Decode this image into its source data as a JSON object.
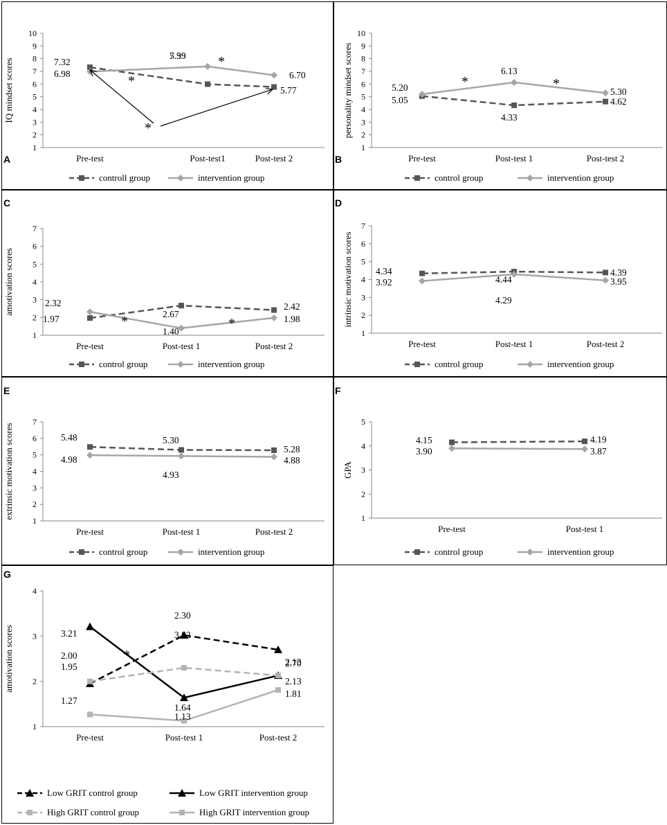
{
  "chart_data": [
    {
      "panel": "A",
      "type": "line",
      "ylabel": "IQ mindset scores",
      "ylim": [
        1,
        10
      ],
      "yticks": [
        1,
        2,
        3,
        4,
        5,
        6,
        7,
        8,
        9,
        10
      ],
      "categories": [
        "Pre-test",
        "Post-test1",
        "Post-test 2"
      ],
      "series": [
        {
          "name": "controll group",
          "values": [
            7.32,
            5.99,
            5.77
          ],
          "labels": [
            "7.32",
            "5.99",
            "5.77"
          ],
          "style": "dashed",
          "color": "#555555",
          "marker": "square"
        },
        {
          "name": "intervention group",
          "values": [
            6.98,
            7.39,
            6.7
          ],
          "labels": [
            "6.98",
            "7.39",
            "6.70"
          ],
          "style": "solid",
          "color": "#a6a6a6",
          "marker": "diamond"
        }
      ],
      "annotations": [
        "*",
        "*",
        "*"
      ]
    },
    {
      "panel": "B",
      "type": "line",
      "ylabel": "personality mindset scores",
      "ylim": [
        1,
        10
      ],
      "yticks": [
        1,
        2,
        3,
        4,
        5,
        6,
        7,
        8,
        9,
        10
      ],
      "categories": [
        "Pre-test",
        "Post-test 1",
        "Post-test 2"
      ],
      "series": [
        {
          "name": "control group",
          "values": [
            5.05,
            4.33,
            4.62
          ],
          "labels": [
            "5.05",
            "4.33",
            "4.62"
          ],
          "style": "dashed",
          "color": "#555555",
          "marker": "square"
        },
        {
          "name": "intervention group",
          "values": [
            5.2,
            6.13,
            5.3
          ],
          "labels": [
            "5.20",
            "6.13",
            "5.30"
          ],
          "style": "solid",
          "color": "#a6a6a6",
          "marker": "diamond"
        }
      ],
      "annotations": [
        "*",
        "*"
      ]
    },
    {
      "panel": "C",
      "type": "line",
      "ylabel": "amotivation scores",
      "ylim": [
        1,
        7
      ],
      "yticks": [
        1,
        2,
        3,
        4,
        5,
        6,
        7
      ],
      "categories": [
        "Pre-test",
        "Post-test 1",
        "Post-test 2"
      ],
      "series": [
        {
          "name": "control group",
          "values": [
            1.97,
            2.67,
            2.42
          ],
          "labels": [
            "1.97",
            "2.67",
            "2.42"
          ],
          "style": "dashed",
          "color": "#555555",
          "marker": "square"
        },
        {
          "name": "intervention group",
          "values": [
            2.32,
            1.4,
            1.98
          ],
          "labels": [
            "2.32",
            "1.40",
            "1.98"
          ],
          "style": "solid",
          "color": "#a6a6a6",
          "marker": "diamond"
        }
      ],
      "annotations": [
        "*",
        "*"
      ]
    },
    {
      "panel": "D",
      "type": "line",
      "ylabel": "intrinsic motivation scores",
      "ylim": [
        1,
        7
      ],
      "yticks": [
        1,
        2,
        3,
        4,
        5,
        6,
        7
      ],
      "categories": [
        "Pre-test",
        "Post-test 1",
        "Post-test 2"
      ],
      "series": [
        {
          "name": "control group",
          "values": [
            4.34,
            4.44,
            4.39
          ],
          "labels": [
            "4.34",
            "4.44",
            "4.39"
          ],
          "style": "dashed",
          "color": "#555555",
          "marker": "square"
        },
        {
          "name": "intervention group",
          "values": [
            3.92,
            4.29,
            3.95
          ],
          "labels": [
            "3.92",
            "4.29",
            "3.95"
          ],
          "style": "solid",
          "color": "#a6a6a6",
          "marker": "diamond"
        }
      ],
      "annotations": []
    },
    {
      "panel": "E",
      "type": "line",
      "ylabel": "extrinsic motivation scores",
      "ylim": [
        1,
        7
      ],
      "yticks": [
        1,
        2,
        3,
        4,
        5,
        6,
        7
      ],
      "categories": [
        "Pre-test",
        "Post-test 1",
        "Post-test 2"
      ],
      "series": [
        {
          "name": "control group",
          "values": [
            5.48,
            5.3,
            5.28
          ],
          "labels": [
            "5.48",
            "5.30",
            "5.28"
          ],
          "style": "dashed",
          "color": "#555555",
          "marker": "square"
        },
        {
          "name": "intervention group",
          "values": [
            4.98,
            4.93,
            4.88
          ],
          "labels": [
            "4.98",
            "4.93",
            "4.88"
          ],
          "style": "solid",
          "color": "#a6a6a6",
          "marker": "diamond"
        }
      ],
      "annotations": []
    },
    {
      "panel": "F",
      "type": "line",
      "ylabel": "GPA",
      "ylim": [
        1,
        5
      ],
      "yticks": [
        1,
        2,
        3,
        4,
        5
      ],
      "categories": [
        "Pre-test",
        "Post-test 1"
      ],
      "series": [
        {
          "name": "control group",
          "values": [
            4.15,
            4.19
          ],
          "labels": [
            "4.15",
            "4.19"
          ],
          "style": "dashed",
          "color": "#555555",
          "marker": "square"
        },
        {
          "name": "intervention group",
          "values": [
            3.9,
            3.87
          ],
          "labels": [
            "3.90",
            "3.87"
          ],
          "style": "solid",
          "color": "#a6a6a6",
          "marker": "diamond"
        }
      ],
      "annotations": []
    },
    {
      "panel": "G",
      "type": "line",
      "ylabel": "amotivation scores",
      "ylim": [
        1,
        4
      ],
      "yticks": [
        1,
        2,
        3,
        4
      ],
      "categories": [
        "Pre-test",
        "Post-test 1",
        "Post-test 2"
      ],
      "series": [
        {
          "name": "Low GRIT control group",
          "values": [
            1.95,
            3.02,
            2.7
          ],
          "labels": [
            "1.95",
            "3.02",
            "2.70"
          ],
          "style": "dashed",
          "color": "#000000",
          "marker": "triangle"
        },
        {
          "name": "Low GRIT intervention group",
          "values": [
            3.21,
            1.64,
            2.13
          ],
          "labels": [
            "3.21",
            "1.64",
            "2.13"
          ],
          "style": "solid",
          "color": "#000000",
          "marker": "triangle"
        },
        {
          "name": "High GRIT control group",
          "values": [
            2.0,
            2.3,
            2.13
          ],
          "labels": [
            "2.00",
            "2.30",
            "2.13"
          ],
          "style": "dashed",
          "color": "#b3b3b3",
          "marker": "square"
        },
        {
          "name": "High GRIT intervention group",
          "values": [
            1.27,
            1.13,
            1.81
          ],
          "labels": [
            "1.27",
            "1.13",
            "1.81"
          ],
          "style": "solid",
          "color": "#b3b3b3",
          "marker": "square"
        }
      ],
      "annotations": [
        "*"
      ]
    }
  ]
}
